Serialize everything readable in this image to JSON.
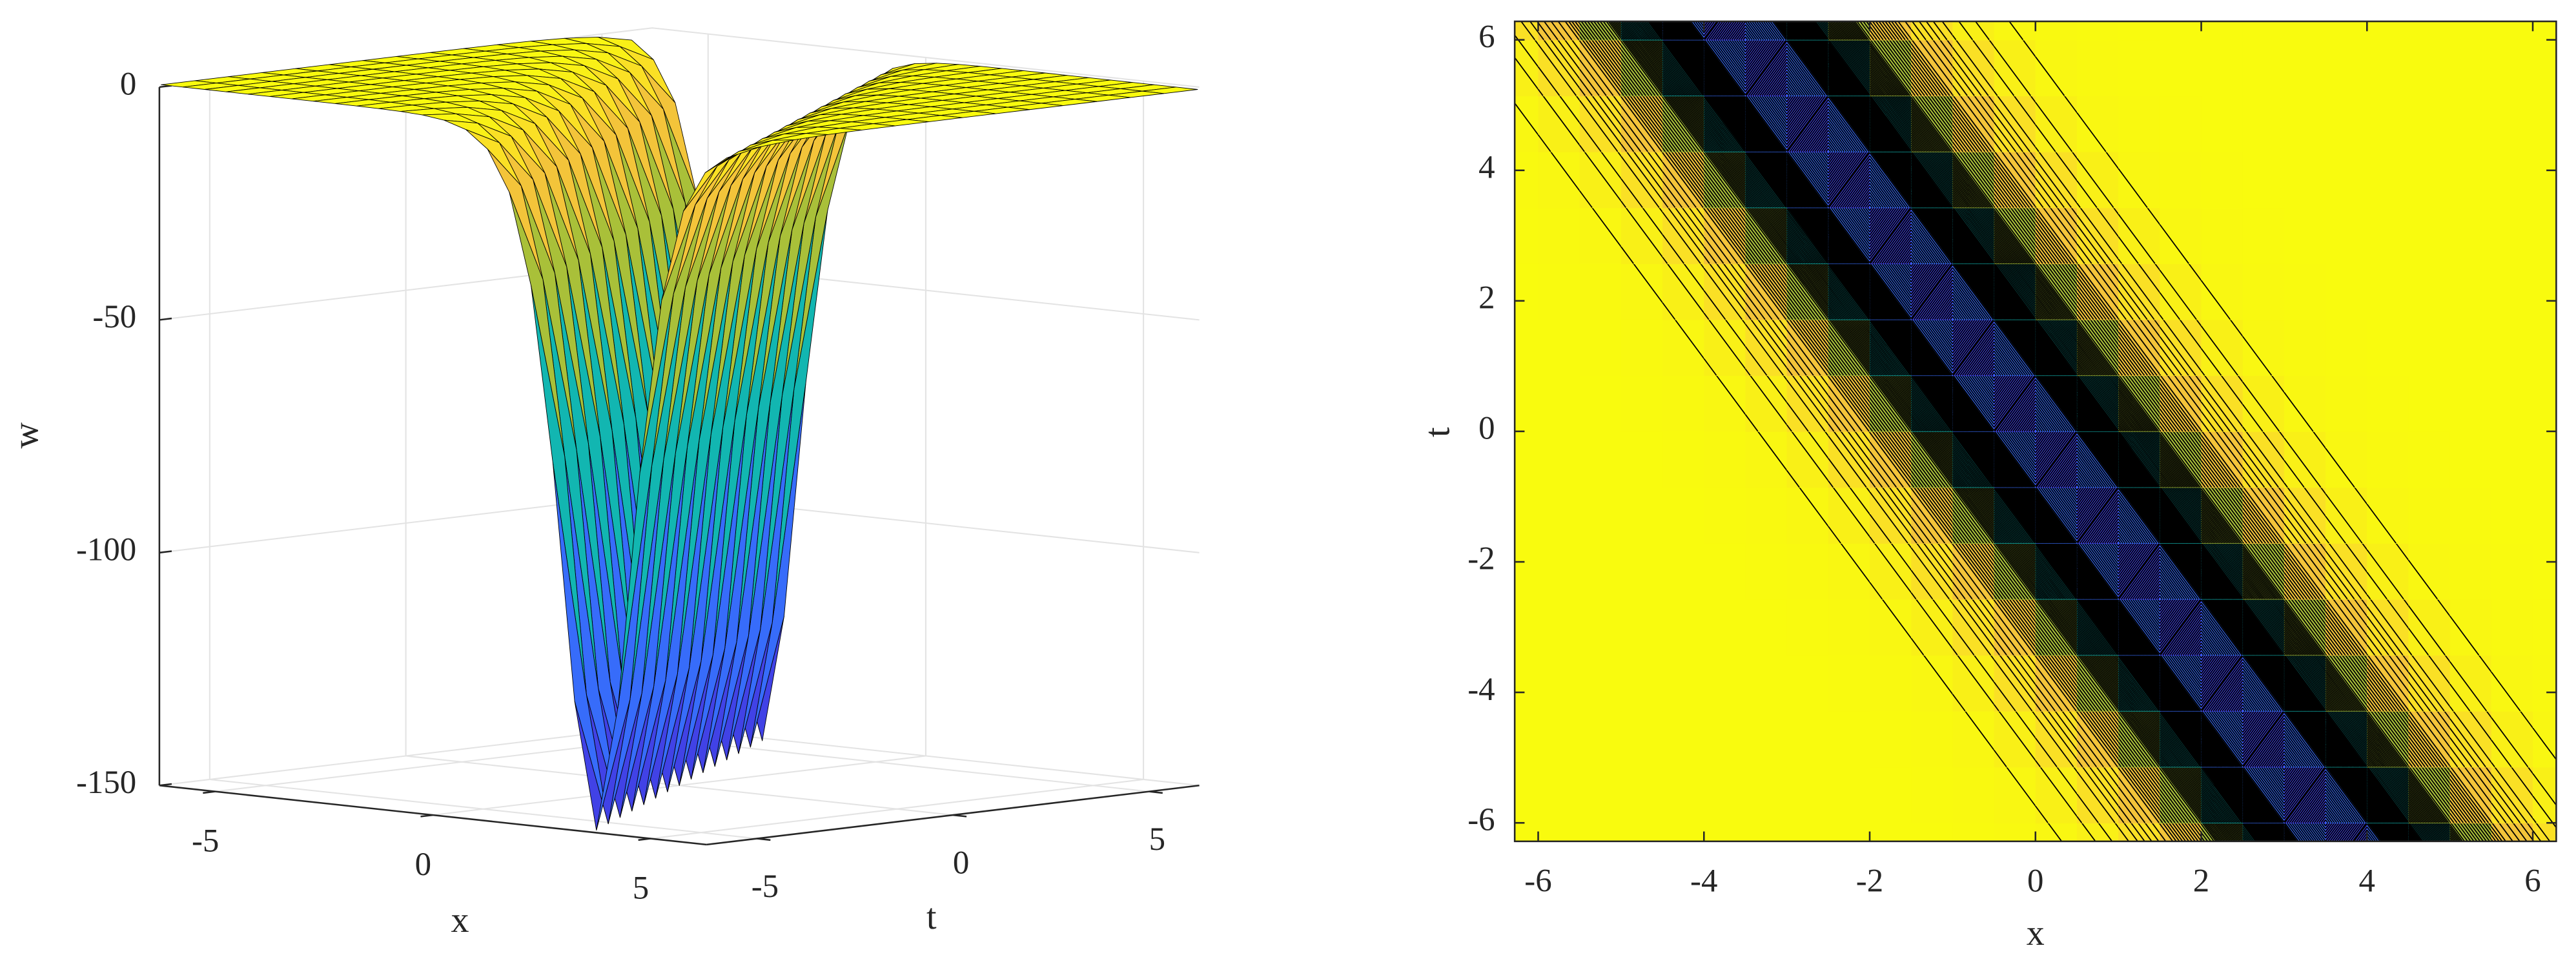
{
  "chart_data": [
    {
      "type": "surface",
      "x": [
        -6.5,
        -6,
        -5.5,
        -5,
        -4.5,
        -4,
        -3.5,
        -3,
        -2.5,
        -2,
        -1.5,
        -1,
        -0.5,
        0,
        0.5,
        1,
        1.5,
        2,
        2.5,
        3,
        3.5,
        4,
        4.5,
        5,
        5.5,
        6,
        6.5
      ],
      "y": [
        -6.857,
        -6,
        -5.143,
        -4.286,
        -3.429,
        -2.571,
        -1.714,
        -0.857,
        0,
        0.857,
        1.714,
        2.571,
        3.429,
        4.286,
        5.143,
        6,
        6.857
      ],
      "values": [
        [
          0,
          0,
          0,
          0,
          0,
          0,
          0,
          0,
          0,
          -0.01,
          -0.03,
          -0.07,
          -0.17,
          -0.42,
          -1.03,
          -2.54,
          -6.24,
          -15,
          -34.6,
          -72.1,
          -122.8,
          -150,
          -122.8,
          -72.1,
          -34.6,
          -15,
          -6.24
        ],
        [
          0,
          0,
          0,
          0,
          0,
          0,
          0,
          0,
          -0.01,
          -0.03,
          -0.07,
          -0.17,
          -0.42,
          -1.03,
          -2.54,
          -6.24,
          -15,
          -34.6,
          -72.1,
          -122.8,
          -150,
          -122.8,
          -72.1,
          -34.6,
          -15,
          -6.24,
          -2.54
        ],
        [
          0,
          0,
          0,
          0,
          0,
          0,
          0,
          -0.01,
          -0.03,
          -0.07,
          -0.17,
          -0.42,
          -1.03,
          -2.54,
          -6.24,
          -15,
          -34.6,
          -72.1,
          -122.8,
          -150,
          -122.8,
          -72.1,
          -34.6,
          -15,
          -6.24,
          -2.54,
          -1.03
        ],
        [
          0,
          0,
          0,
          0,
          0,
          0,
          -0.01,
          -0.03,
          -0.07,
          -0.17,
          -0.42,
          -1.03,
          -2.54,
          -6.24,
          -15,
          -34.6,
          -72.1,
          -122.8,
          -150,
          -122.8,
          -72.1,
          -34.6,
          -15,
          -6.24,
          -2.54,
          -1.03,
          -0.42
        ],
        [
          0,
          0,
          0,
          0,
          0,
          -0.01,
          -0.03,
          -0.07,
          -0.17,
          -0.42,
          -1.03,
          -2.54,
          -6.24,
          -15,
          -34.6,
          -72.1,
          -122.8,
          -150,
          -122.8,
          -72.1,
          -34.6,
          -15,
          -6.24,
          -2.54,
          -1.03,
          -0.42,
          -0.17
        ],
        [
          0,
          0,
          0,
          0,
          -0.01,
          -0.03,
          -0.07,
          -0.17,
          -0.42,
          -1.03,
          -2.54,
          -6.24,
          -15,
          -34.6,
          -72.1,
          -122.8,
          -150,
          -122.8,
          -72.1,
          -34.6,
          -15,
          -6.24,
          -2.54,
          -1.03,
          -0.42,
          -0.17,
          -0.07
        ],
        [
          0,
          0,
          0,
          -0.01,
          -0.03,
          -0.07,
          -0.17,
          -0.42,
          -1.03,
          -2.54,
          -6.24,
          -15,
          -34.6,
          -72.1,
          -122.8,
          -150,
          -122.8,
          -72.1,
          -34.6,
          -15,
          -6.24,
          -2.54,
          -1.03,
          -0.42,
          -0.17,
          -0.07,
          -0.03
        ],
        [
          0,
          0,
          -0.01,
          -0.03,
          -0.07,
          -0.17,
          -0.42,
          -1.03,
          -2.54,
          -6.24,
          -15,
          -34.6,
          -72.1,
          -122.8,
          -150,
          -122.8,
          -72.1,
          -34.6,
          -15,
          -6.24,
          -2.54,
          -1.03,
          -0.42,
          -0.17,
          -0.07,
          -0.03,
          -0.01
        ],
        [
          0,
          -0.01,
          -0.03,
          -0.07,
          -0.17,
          -0.42,
          -1.03,
          -2.54,
          -6.24,
          -15,
          -34.6,
          -72.1,
          -122.8,
          -150,
          -122.8,
          -72.1,
          -34.6,
          -15,
          -6.24,
          -2.54,
          -1.03,
          -0.42,
          -0.17,
          -0.07,
          -0.03,
          -0.01,
          0
        ],
        [
          -0.01,
          -0.03,
          -0.07,
          -0.17,
          -0.42,
          -1.03,
          -2.54,
          -6.24,
          -15,
          -34.6,
          -72.1,
          -122.8,
          -150,
          -122.8,
          -72.1,
          -34.6,
          -15,
          -6.24,
          -2.54,
          -1.03,
          -0.42,
          -0.17,
          -0.07,
          -0.03,
          -0.01,
          0,
          0
        ],
        [
          -0.03,
          -0.07,
          -0.17,
          -0.42,
          -1.03,
          -2.54,
          -6.24,
          -15,
          -34.6,
          -72.1,
          -122.8,
          -150,
          -122.8,
          -72.1,
          -34.6,
          -15,
          -6.24,
          -2.54,
          -1.03,
          -0.42,
          -0.17,
          -0.07,
          -0.03,
          -0.01,
          0,
          0,
          0
        ],
        [
          -0.07,
          -0.17,
          -0.42,
          -1.03,
          -2.54,
          -6.24,
          -15,
          -34.6,
          -72.1,
          -122.8,
          -150,
          -122.8,
          -72.1,
          -34.6,
          -15,
          -6.24,
          -2.54,
          -1.03,
          -0.42,
          -0.17,
          -0.07,
          -0.03,
          -0.01,
          0,
          0,
          0,
          0
        ],
        [
          -0.17,
          -0.42,
          -1.03,
          -2.54,
          -6.24,
          -15,
          -34.6,
          -72.1,
          -122.8,
          -150,
          -122.8,
          -72.1,
          -34.6,
          -15,
          -6.24,
          -2.54,
          -1.03,
          -0.42,
          -0.17,
          -0.07,
          -0.03,
          -0.01,
          0,
          0,
          0,
          0,
          0
        ],
        [
          -0.42,
          -1.03,
          -2.54,
          -6.24,
          -15,
          -34.6,
          -72.1,
          -122.8,
          -150,
          -122.8,
          -72.1,
          -34.6,
          -15,
          -6.24,
          -2.54,
          -1.03,
          -0.42,
          -0.17,
          -0.07,
          -0.03,
          -0.01,
          0,
          0,
          0,
          0,
          0,
          0
        ],
        [
          -1.03,
          -2.54,
          -6.24,
          -15,
          -34.6,
          -72.1,
          -122.8,
          -150,
          -122.8,
          -72.1,
          -34.6,
          -15,
          -6.24,
          -2.54,
          -1.03,
          -0.42,
          -0.17,
          -0.07,
          -0.03,
          -0.01,
          0,
          0,
          0,
          0,
          0,
          0,
          0
        ],
        [
          -2.54,
          -6.24,
          -15,
          -34.6,
          -72.1,
          -122.8,
          -150,
          -122.8,
          -72.1,
          -34.6,
          -15,
          -6.24,
          -2.54,
          -1.03,
          -0.42,
          -0.17,
          -0.07,
          -0.03,
          -0.01,
          0,
          0,
          0,
          0,
          0,
          0,
          0,
          0
        ],
        [
          -6.24,
          -15,
          -34.6,
          -72.1,
          -122.8,
          -150,
          -122.8,
          -72.1,
          -34.6,
          -15,
          -6.24,
          -2.54,
          -1.03,
          -0.42,
          -0.17,
          -0.07,
          -0.03,
          -0.01,
          0,
          0,
          0,
          0,
          0,
          0,
          0,
          0,
          0
        ]
      ],
      "xlim": [
        -6.2832,
        6.2832
      ],
      "ylim": [
        -6.2832,
        6.2832
      ],
      "zlim": [
        -150,
        0
      ],
      "xticks": [
        -5,
        0,
        5
      ],
      "yticks": [
        -5,
        0,
        5
      ],
      "zticks": [
        -150,
        -100,
        -50,
        0
      ],
      "xlabel": "x",
      "ylabel": "t",
      "zlabel": "w",
      "colormap": "parula",
      "edge_color": "#000000",
      "grid": true
    },
    {
      "type": "contour",
      "xlim": [
        -6.2832,
        6.2832
      ],
      "ylim": [
        -6.2832,
        6.2832
      ],
      "xticks": [
        -6,
        -4,
        -2,
        0,
        2,
        4,
        6
      ],
      "yticks": [
        -6,
        -4,
        -2,
        0,
        2,
        4,
        6
      ],
      "xlabel": "x",
      "ylabel": "t",
      "levels": 100,
      "colormap": "parula",
      "line_color": "#000000"
    }
  ]
}
